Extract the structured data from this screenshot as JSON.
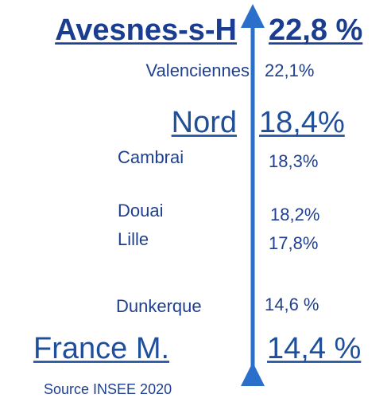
{
  "items": [
    {
      "label": "Avesnes-s-H",
      "value": "22,8 %"
    },
    {
      "label": "Valenciennes",
      "value": "22,1%"
    },
    {
      "label": "Nord",
      "value": "18,4%"
    },
    {
      "label": "Cambrai",
      "value": "18,3%"
    },
    {
      "label": "Douai",
      "value": "18,2%"
    },
    {
      "label": "Lille",
      "value": "17,8%"
    },
    {
      "label": "Dunkerque",
      "value": "14,6 %"
    },
    {
      "label": "France M.",
      "value": "14,4 %"
    }
  ],
  "source": "Source INSEE 2020"
}
